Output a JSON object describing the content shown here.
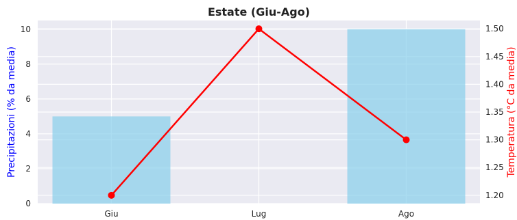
{
  "chart_data": {
    "type": "bar",
    "title": "Estate (Giu-Ago)",
    "categories": [
      "Giu",
      "Lug",
      "Ago"
    ],
    "bar_series": {
      "axis": "left",
      "values": [
        5.0,
        0.0,
        10.0
      ],
      "color": "#87CEEB"
    },
    "line_series": {
      "axis": "right",
      "values": [
        1.2,
        1.5,
        1.3
      ],
      "color": "#FF0000"
    },
    "left_axis": {
      "label": "Precipitazioni (% da media)",
      "label_color": "#0000FF",
      "ylim": [
        0,
        10.5
      ],
      "ticks": [
        "0",
        "2",
        "4",
        "6",
        "8",
        "10"
      ]
    },
    "right_axis": {
      "label": "Temperatura (°C da media)",
      "label_color": "#FF0000",
      "ylim": [
        1.185,
        1.515
      ],
      "ticks": [
        "1.20",
        "1.25",
        "1.30",
        "1.35",
        "1.40",
        "1.45",
        "1.50"
      ]
    },
    "grid": true,
    "plot_background": "#EAEAF2"
  }
}
